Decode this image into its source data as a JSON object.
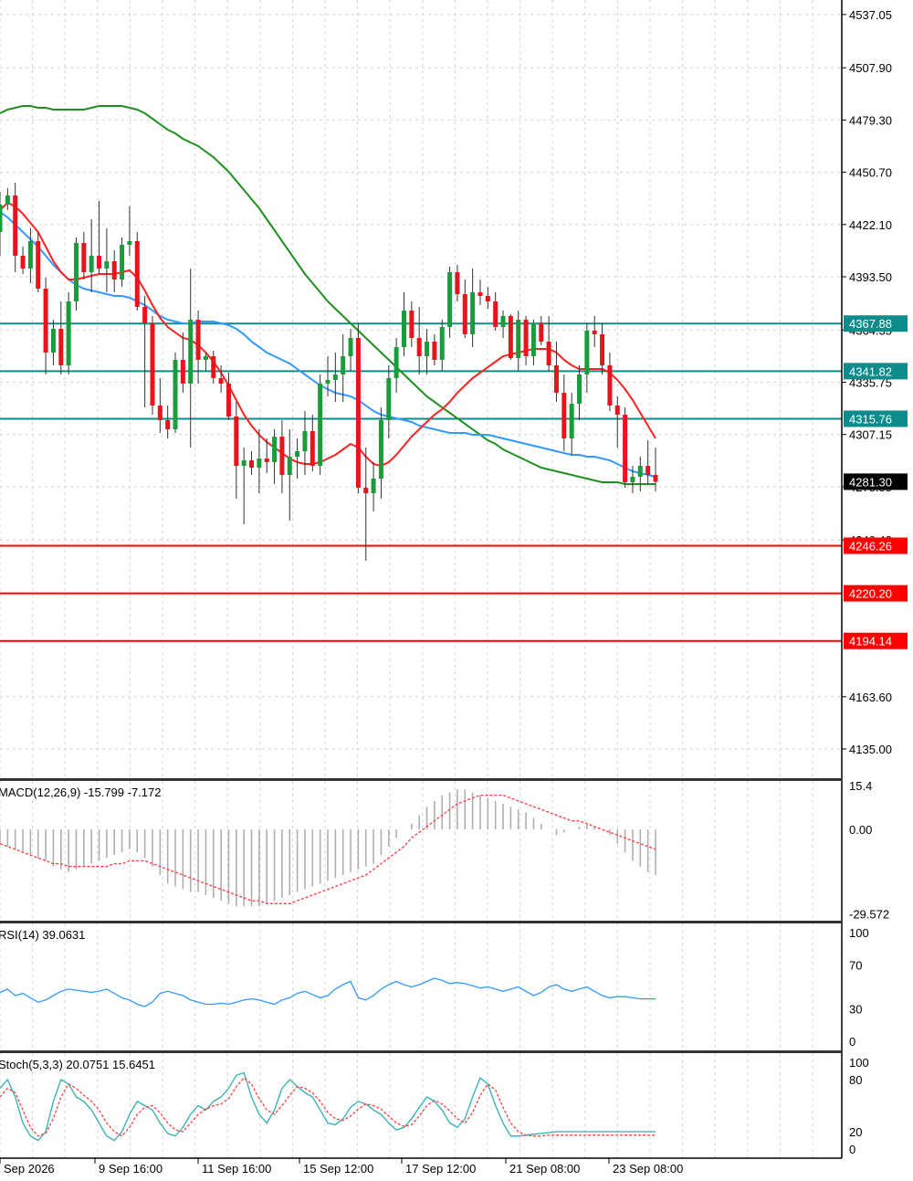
{
  "chart_data": {
    "type": "candlestick",
    "main": {
      "y_range": [
        4120,
        4545
      ],
      "y_ticks": [
        "4537.05",
        "4507.90",
        "4479.30",
        "4450.70",
        "4422.10",
        "4393.50",
        "4364.35",
        "4335.75",
        "4307.15",
        "4278.55",
        "4249.40",
        "4163.60",
        "4135.00"
      ],
      "current_price": "4281.30",
      "resistance_levels": [
        "4367.88",
        "4341.82",
        "4315.76"
      ],
      "support_levels": [
        "4246.26",
        "4220.20",
        "4194.14"
      ],
      "candles": [
        [
          4418,
          4440,
          4405,
          4433
        ],
        [
          4433,
          4442,
          4430,
          4438
        ],
        [
          4438,
          4445,
          4396,
          4405
        ],
        [
          4405,
          4410,
          4395,
          4398
        ],
        [
          4398,
          4420,
          4390,
          4413
        ],
        [
          4413,
          4418,
          4385,
          4387
        ],
        [
          4387,
          4393,
          4340,
          4352
        ],
        [
          4352,
          4370,
          4345,
          4365
        ],
        [
          4365,
          4380,
          4340,
          4345
        ],
        [
          4345,
          4385,
          4340,
          4380
        ],
        [
          4380,
          4415,
          4375,
          4412
        ],
        [
          4412,
          4418,
          4392,
          4396
        ],
        [
          4396,
          4425,
          4385,
          4405
        ],
        [
          4405,
          4435,
          4395,
          4398
        ],
        [
          4398,
          4420,
          4385,
          4402
        ],
        [
          4402,
          4408,
          4385,
          4392
        ],
        [
          4392,
          4415,
          4388,
          4411
        ],
        [
          4411,
          4432,
          4405,
          4413
        ],
        [
          4413,
          4418,
          4375,
          4377
        ],
        [
          4377,
          4383,
          4322,
          4368
        ],
        [
          4368,
          4372,
          4318,
          4323
        ],
        [
          4323,
          4338,
          4308,
          4315
        ],
        [
          4315,
          4323,
          4305,
          4310
        ],
        [
          4310,
          4352,
          4308,
          4348
        ],
        [
          4348,
          4363,
          4330,
          4335
        ],
        [
          4335,
          4398,
          4300,
          4370
        ],
        [
          4370,
          4375,
          4335,
          4348
        ],
        [
          4348,
          4352,
          4342,
          4350
        ],
        [
          4350,
          4353,
          4335,
          4338
        ],
        [
          4338,
          4345,
          4330,
          4335
        ],
        [
          4335,
          4341,
          4315,
          4317
        ],
        [
          4317,
          4325,
          4272,
          4290
        ],
        [
          4290,
          4300,
          4258,
          4293
        ],
        [
          4293,
          4298,
          4285,
          4289
        ],
        [
          4289,
          4310,
          4275,
          4294
        ],
        [
          4294,
          4305,
          4286,
          4292
        ],
        [
          4292,
          4310,
          4280,
          4306
        ],
        [
          4306,
          4315,
          4275,
          4285
        ],
        [
          4285,
          4310,
          4260,
          4295
        ],
        [
          4295,
          4305,
          4283,
          4298
        ],
        [
          4298,
          4320,
          4285,
          4309
        ],
        [
          4309,
          4318,
          4287,
          4290
        ],
        [
          4290,
          4340,
          4285,
          4335
        ],
        [
          4335,
          4350,
          4328,
          4337
        ],
        [
          4337,
          4352,
          4325,
          4340
        ],
        [
          4340,
          4362,
          4325,
          4350
        ],
        [
          4350,
          4365,
          4342,
          4360
        ],
        [
          4360,
          4368,
          4275,
          4278
        ],
        [
          4278,
          4300,
          4238,
          4275
        ],
        [
          4275,
          4292,
          4265,
          4283
        ],
        [
          4283,
          4322,
          4272,
          4315
        ],
        [
          4315,
          4345,
          4305,
          4338
        ],
        [
          4338,
          4360,
          4330,
          4355
        ],
        [
          4355,
          4385,
          4350,
          4375
        ],
        [
          4375,
          4380,
          4355,
          4360
        ],
        [
          4360,
          4377,
          4340,
          4350
        ],
        [
          4350,
          4365,
          4340,
          4358
        ],
        [
          4358,
          4362,
          4345,
          4348
        ],
        [
          4348,
          4370,
          4342,
          4366
        ],
        [
          4366,
          4399,
          4360,
          4396
        ],
        [
          4396,
          4400,
          4380,
          4384
        ],
        [
          4384,
          4392,
          4360,
          4362
        ],
        [
          4362,
          4398,
          4355,
          4385
        ],
        [
          4385,
          4392,
          4378,
          4383
        ],
        [
          4383,
          4388,
          4376,
          4380
        ],
        [
          4380,
          4385,
          4364,
          4366
        ],
        [
          4366,
          4375,
          4360,
          4372
        ],
        [
          4372,
          4373,
          4348,
          4349
        ],
        [
          4349,
          4375,
          4342,
          4370
        ],
        [
          4370,
          4372,
          4345,
          4350
        ],
        [
          4350,
          4370,
          4345,
          4368
        ],
        [
          4368,
          4372,
          4356,
          4358
        ],
        [
          4358,
          4372,
          4342,
          4345
        ],
        [
          4345,
          4358,
          4325,
          4330
        ],
        [
          4330,
          4340,
          4298,
          4305
        ],
        [
          4305,
          4330,
          4296,
          4324
        ],
        [
          4324,
          4345,
          4315,
          4340
        ],
        [
          4340,
          4368,
          4330,
          4364
        ],
        [
          4364,
          4372,
          4355,
          4362
        ],
        [
          4362,
          4368,
          4340,
          4345
        ],
        [
          4345,
          4352,
          4320,
          4323
        ],
        [
          4323,
          4328,
          4300,
          4318
        ],
        [
          4318,
          4322,
          4278,
          4281
        ],
        [
          4281,
          4290,
          4275,
          4284
        ],
        [
          4284,
          4295,
          4276,
          4290
        ],
        [
          4290,
          4304,
          4280,
          4285
        ],
        [
          4285,
          4300,
          4276,
          4281.3
        ]
      ],
      "ema_green": [
        4483,
        4485,
        4486,
        4487,
        4487,
        4486,
        4486,
        4485,
        4485,
        4485,
        4485,
        4485,
        4486,
        4487,
        4487,
        4487,
        4487,
        4486,
        4485,
        4483,
        4480,
        4477,
        4474,
        4472,
        4469,
        4467,
        4465,
        4462,
        4459,
        4455,
        4451,
        4446,
        4441,
        4436,
        4431,
        4425,
        4419,
        4413,
        4407,
        4401,
        4395,
        4390,
        4385,
        4380,
        4376,
        4372,
        4368,
        4364,
        4360,
        4356,
        4352,
        4348,
        4344,
        4340,
        4336,
        4332,
        4328,
        4325,
        4322,
        4319,
        4316,
        4313,
        4310,
        4307,
        4304,
        4302,
        4299,
        4297,
        4295,
        4293,
        4291,
        4289,
        4288,
        4287,
        4286,
        4285,
        4284,
        4283,
        4282,
        4281,
        4281,
        4281,
        4280,
        4280,
        4280,
        4280,
        4280
      ],
      "ema_blue": [
        4429,
        4426,
        4422,
        4418,
        4414,
        4410,
        4405,
        4400,
        4396,
        4392,
        4389,
        4387,
        4386,
        4385,
        4384,
        4383,
        4383,
        4382,
        4380,
        4378,
        4375,
        4372,
        4370,
        4369,
        4368,
        4368,
        4369,
        4369,
        4369,
        4368,
        4367,
        4365,
        4362,
        4358,
        4355,
        4352,
        4350,
        4348,
        4346,
        4343,
        4340,
        4337,
        4334,
        4332,
        4330,
        4329,
        4328,
        4326,
        4323,
        4320,
        4318,
        4317,
        4316,
        4315,
        4314,
        4312,
        4311,
        4310,
        4309,
        4308,
        4308,
        4308,
        4307,
        4307,
        4307,
        4306,
        4305,
        4304,
        4303,
        4302,
        4301,
        4300,
        4299,
        4298,
        4297,
        4296,
        4296,
        4295,
        4295,
        4294,
        4293,
        4291,
        4289,
        4287,
        4286,
        4285,
        4284
      ],
      "ema_red": [
        4430,
        4434,
        4432,
        4428,
        4423,
        4418,
        4410,
        4402,
        4396,
        4392,
        4392,
        4393,
        4394,
        4395,
        4395,
        4395,
        4396,
        4397,
        4393,
        4386,
        4378,
        4371,
        4366,
        4363,
        4360,
        4359,
        4356,
        4352,
        4347,
        4341,
        4334,
        4326,
        4318,
        4312,
        4307,
        4303,
        4300,
        4297,
        4294,
        4292,
        4291,
        4291,
        4292,
        4294,
        4296,
        4299,
        4302,
        4300,
        4295,
        4291,
        4290,
        4292,
        4296,
        4301,
        4306,
        4310,
        4314,
        4318,
        4321,
        4325,
        4330,
        4334,
        4338,
        4341,
        4344,
        4347,
        4350,
        4351,
        4352,
        4353,
        4354,
        4354,
        4354,
        4352,
        4348,
        4345,
        4343,
        4343,
        4343,
        4343,
        4341,
        4337,
        4332,
        4326,
        4319,
        4312,
        4305
      ]
    },
    "macd": {
      "label": "MACD(12,26,9) -15.799 -7.172",
      "y_ticks": [
        "15.4",
        "0.00",
        "-29.572"
      ],
      "y_range": [
        -32,
        17
      ],
      "histogram": [
        -5,
        -6,
        -7,
        -8,
        -9,
        -10,
        -11,
        -13,
        -14,
        -15,
        -14,
        -13,
        -12,
        -11,
        -10,
        -9,
        -8,
        -7,
        -8,
        -10,
        -13,
        -16,
        -19,
        -20,
        -21,
        -22,
        -22,
        -23,
        -24,
        -25,
        -26,
        -27,
        -27,
        -27,
        -27,
        -26,
        -25,
        -24,
        -23,
        -22,
        -21,
        -20,
        -19,
        -18,
        -17,
        -16,
        -15,
        -14,
        -13,
        -12,
        -9,
        -6,
        -3,
        0,
        2,
        5,
        8,
        10,
        12,
        13,
        14,
        14,
        13,
        12,
        11,
        10,
        9,
        8,
        7,
        6,
        4,
        2,
        0,
        -2,
        -1,
        0,
        1,
        2,
        1,
        0,
        -2,
        -5,
        -8,
        -11,
        -13,
        -15,
        -16
      ],
      "signal": [
        -5,
        -6,
        -7,
        -8,
        -9,
        -10,
        -11,
        -12,
        -12,
        -13,
        -13,
        -13,
        -13,
        -13,
        -13,
        -12,
        -12,
        -11,
        -11,
        -11,
        -12,
        -13,
        -14,
        -15,
        -16,
        -17,
        -18,
        -19,
        -20,
        -21,
        -22,
        -23,
        -24,
        -25,
        -25,
        -26,
        -26,
        -26,
        -26,
        -25,
        -24,
        -23,
        -22,
        -21,
        -20,
        -19,
        -18,
        -17,
        -16,
        -14,
        -12,
        -10,
        -8,
        -6,
        -3,
        -1,
        1,
        3,
        5,
        7,
        9,
        10,
        11,
        12,
        12,
        12,
        12,
        11,
        10,
        9,
        8,
        7,
        6,
        5,
        4,
        3,
        3,
        2,
        1,
        0,
        -1,
        -2,
        -3,
        -4,
        -5,
        -6,
        -7
      ]
    },
    "rsi": {
      "label": "RSI(14) 39.0631",
      "y_ticks": [
        "100",
        "70",
        "30",
        "0"
      ],
      "values": [
        45,
        48,
        42,
        44,
        40,
        36,
        38,
        42,
        46,
        48,
        47,
        46,
        45,
        46,
        48,
        44,
        40,
        38,
        34,
        32,
        36,
        44,
        46,
        44,
        42,
        38,
        36,
        34,
        34,
        35,
        34,
        36,
        38,
        39,
        38,
        36,
        34,
        38,
        40,
        44,
        46,
        43,
        40,
        42,
        48,
        52,
        55,
        40,
        38,
        42,
        48,
        52,
        55,
        52,
        50,
        52,
        55,
        58,
        56,
        53,
        54,
        53,
        51,
        49,
        50,
        48,
        46,
        48,
        50,
        46,
        42,
        45,
        50,
        52,
        48,
        46,
        48,
        50,
        46,
        42,
        40,
        41,
        41,
        40,
        39,
        39,
        39
      ]
    },
    "stoch": {
      "label": "Stoch(5,3,3) 20.0751 15.6451",
      "y_ticks": [
        "100",
        "80",
        "20",
        "0"
      ],
      "k": [
        70,
        80,
        60,
        30,
        15,
        10,
        20,
        55,
        80,
        75,
        60,
        55,
        45,
        30,
        15,
        10,
        20,
        40,
        55,
        50,
        45,
        30,
        18,
        15,
        25,
        40,
        50,
        45,
        55,
        60,
        70,
        85,
        88,
        60,
        40,
        30,
        45,
        70,
        80,
        72,
        65,
        60,
        45,
        30,
        28,
        35,
        48,
        55,
        52,
        45,
        40,
        30,
        22,
        25,
        35,
        48,
        60,
        55,
        45,
        30,
        25,
        35,
        60,
        82,
        75,
        50,
        30,
        15,
        15,
        16,
        17,
        18,
        19,
        20,
        20,
        20,
        20,
        20,
        20,
        20,
        20,
        20,
        20,
        20,
        20,
        20,
        20
      ],
      "d": [
        60,
        70,
        65,
        45,
        25,
        15,
        18,
        35,
        60,
        75,
        70,
        62,
        55,
        45,
        30,
        20,
        15,
        25,
        40,
        48,
        50,
        42,
        30,
        22,
        20,
        30,
        40,
        46,
        50,
        52,
        58,
        72,
        82,
        75,
        58,
        45,
        40,
        50,
        62,
        72,
        70,
        65,
        55,
        42,
        35,
        33,
        38,
        46,
        52,
        50,
        46,
        38,
        30,
        26,
        28,
        38,
        50,
        56,
        52,
        44,
        35,
        30,
        42,
        62,
        75,
        68,
        48,
        30,
        20,
        16,
        15,
        15,
        16,
        16,
        16,
        16,
        16,
        16,
        16,
        16,
        16,
        16,
        16,
        16,
        16,
        16,
        16
      ]
    },
    "x_labels": [
      "Sep 2026",
      "9 Sep 16:00",
      "11 Sep 16:00",
      "15 Sep 12:00",
      "17 Sep 12:00",
      "21 Sep 08:00",
      "23 Sep 08:00"
    ],
    "colors": {
      "bull": "#1a9c3a",
      "bear": "#e8141c",
      "ema_green": "#1f8f1f",
      "ema_red": "#ff2020",
      "ema_blue": "#3399ff",
      "resistance": "#0e8c8c",
      "support": "#ff0000",
      "macd_hist": "#b0b0b0",
      "macd_signal": "#ff3a3a",
      "rsi": "#3399ff",
      "stoch_k": "#30b0b0",
      "stoch_d": "#ff4040",
      "grid": "#c8d4e0"
    }
  }
}
